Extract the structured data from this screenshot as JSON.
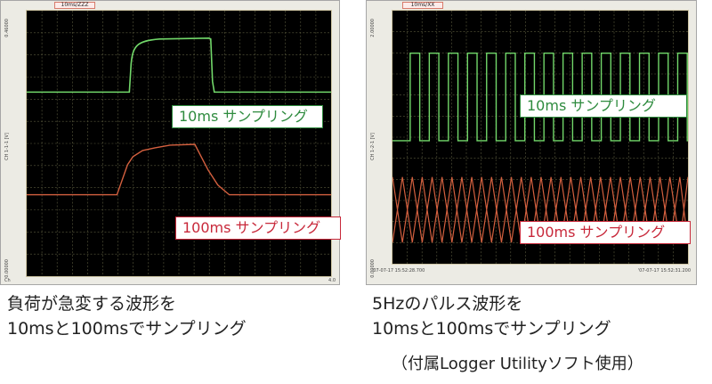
{
  "left_window": {
    "title": "10ms/ZZZ",
    "labels": {
      "green": "10ms サンプリング",
      "red": "100ms サンプリング"
    },
    "axis_texts": [
      "0.46000",
      "CH 1-1-1 [V]",
      "0.00000"
    ],
    "bottom_texts": [
      "Ch",
      "4.0"
    ]
  },
  "right_window": {
    "title": "10ms/XX",
    "labels": {
      "green": "10ms サンプリング",
      "red": "100ms サンプリング"
    },
    "axis_texts": [
      "2.00000",
      "CH 1-2-1 [V]",
      "0.00000"
    ],
    "bottom_texts": [
      "'07-07-17 15:52:28.700",
      "'07-07-17 15:52:31.200"
    ]
  },
  "colors": {
    "green_trace": "#72d86a",
    "red_trace": "#d4603f",
    "grid": "#5c5c3f",
    "green_label": "#2e8b3e",
    "red_label": "#c8283a"
  },
  "captions": {
    "left_line1": "負荷が急変する波形を",
    "left_line2": "10msと100msでサンプリング",
    "right_line1": "5Hzのパルス波形を",
    "right_line2": "10msと100msでサンプリング",
    "footnote": "（付属Logger Utilityソフト使用）"
  }
}
